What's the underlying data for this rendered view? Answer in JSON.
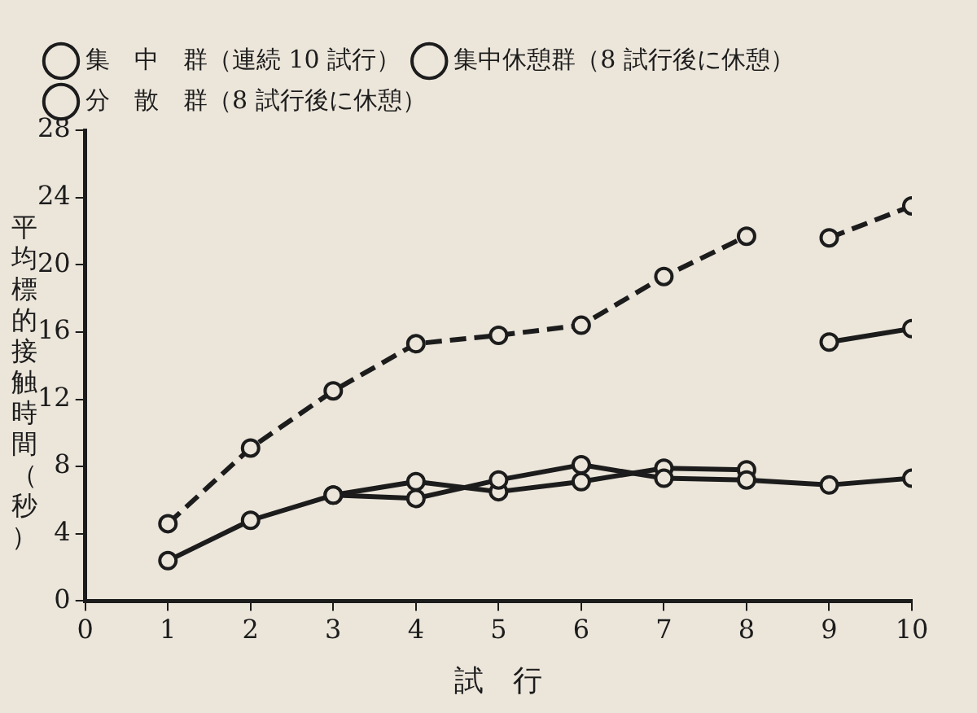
{
  "chart_data": {
    "type": "line",
    "xlabel": "試　行",
    "ylabel": "平均標的接触時間（秒）",
    "xlim": [
      0,
      10
    ],
    "xticks": [
      0,
      1,
      2,
      3,
      4,
      5,
      6,
      7,
      8,
      9,
      10
    ],
    "ylim": [
      0,
      28
    ],
    "yticks": [
      0,
      4,
      8,
      12,
      16,
      20,
      24,
      28
    ],
    "grid": false,
    "legend": "top left",
    "marker": "circle",
    "series": [
      {
        "name": "集　中　群（連続 10 試行）",
        "color": "#1c1c1c",
        "line_style": "solid",
        "x": [
          1,
          2,
          3,
          4,
          5,
          6,
          7,
          8,
          9,
          10
        ],
        "values": [
          2.4,
          4.8,
          6.3,
          6.1,
          7.2,
          8.1,
          7.3,
          7.2,
          6.9,
          7.3
        ]
      },
      {
        "name": "集中休憩群（8 試行後に休憩）",
        "color": "#1c1c1c",
        "line_style": "solid",
        "x": [
          3,
          4,
          5,
          6,
          7,
          8,
          8.5,
          9,
          10
        ],
        "values": [
          6.3,
          7.1,
          6.5,
          7.1,
          7.9,
          7.8,
          null,
          15.4,
          16.2
        ]
      },
      {
        "name": "分　散　群（8 試行後に休憩）",
        "color": "#1c1c1c",
        "line_style": "dashed",
        "x": [
          1,
          2,
          3,
          4,
          5,
          6,
          7,
          8,
          8.5,
          9,
          10
        ],
        "values": [
          4.6,
          9.1,
          12.5,
          15.3,
          15.8,
          16.4,
          19.3,
          21.7,
          null,
          21.6,
          23.5
        ]
      }
    ]
  }
}
